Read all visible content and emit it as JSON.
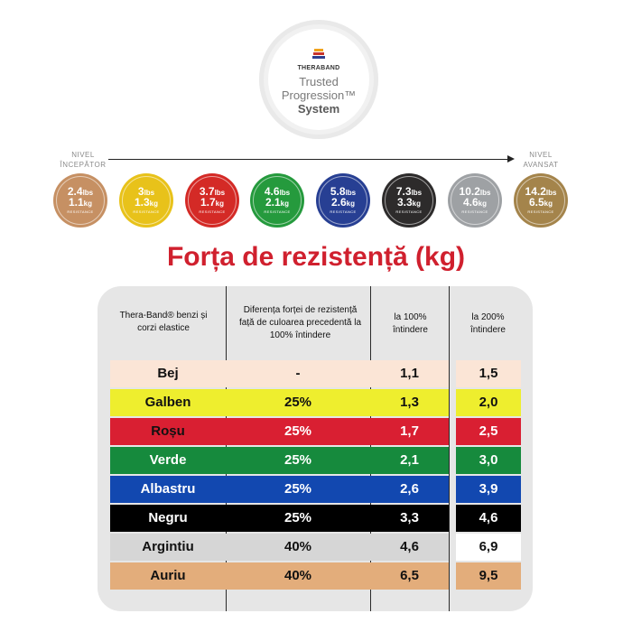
{
  "logo": {
    "brand": "THERABAND",
    "line1": "Trusted",
    "line2": "Progression™",
    "line3": "System"
  },
  "progression": {
    "start_label_1": "NIVEL",
    "start_label_2": "ÎNCEPĂTOR",
    "end_label_1": "NIVEL",
    "end_label_2": "AVANSAT"
  },
  "levels": [
    {
      "lbs": "2.4",
      "kg": "1.1",
      "color": "#c69063"
    },
    {
      "lbs": "3",
      "kg": "1.3",
      "color": "#e8c21a"
    },
    {
      "lbs": "3.7",
      "kg": "1.7",
      "color": "#d42a26"
    },
    {
      "lbs": "4.6",
      "kg": "2.1",
      "color": "#259a3d"
    },
    {
      "lbs": "5.8",
      "kg": "2.6",
      "color": "#273f93"
    },
    {
      "lbs": "7.3",
      "kg": "3.3",
      "color": "#2d2b2b"
    },
    {
      "lbs": "10.2",
      "kg": "4.6",
      "color": "#9ea1a4"
    },
    {
      "lbs": "14.2",
      "kg": "6.5",
      "color": "#a4844b"
    }
  ],
  "units": {
    "lbs": "lbs",
    "kg": "kg",
    "resistance": "RESISTANCE"
  },
  "title": "Forța de rezistență (kg)",
  "table": {
    "headers": {
      "col1": "Thera-Band® benzi și corzi elastice",
      "col2": "Diferența forței de rezistență față de culoarea precedentă la 100% întindere",
      "col3": "la 100% întindere",
      "col4": "la 200% întindere"
    },
    "rows": [
      {
        "name": "Bej",
        "diff": "-",
        "p100": "1,1",
        "p200": "1,5",
        "bg": "#fbe5d6",
        "fg": "#111111",
        "bg4": "#fbe5d6"
      },
      {
        "name": "Galben",
        "diff": "25%",
        "p100": "1,3",
        "p200": "2,0",
        "bg": "#eeee2e",
        "fg": "#111111",
        "bg4": "#eeee2e"
      },
      {
        "name": "Roșu",
        "diff": "25%",
        "p100": "1,7",
        "p200": "2,5",
        "bg": "#d91f32",
        "fg": "#ffffff",
        "fg1": "#111111",
        "bg4": "#d91f32"
      },
      {
        "name": "Verde",
        "diff": "25%",
        "p100": "2,1",
        "p200": "3,0",
        "bg": "#168a3d",
        "fg": "#ffffff",
        "bg4": "#168a3d"
      },
      {
        "name": "Albastru",
        "diff": "25%",
        "p100": "2,6",
        "p200": "3,9",
        "bg": "#1248b0",
        "fg": "#ffffff",
        "bg4": "#1248b0"
      },
      {
        "name": "Negru",
        "diff": "25%",
        "p100": "3,3",
        "p200": "4,6",
        "bg": "#000000",
        "fg": "#ffffff",
        "bg4": "#000000"
      },
      {
        "name": "Argintiu",
        "diff": "40%",
        "p100": "4,6",
        "p200": "6,9",
        "bg": "#d6d6d6",
        "fg": "#111111",
        "bg4": "#ffffff"
      },
      {
        "name": "Auriu",
        "diff": "40%",
        "p100": "6,5",
        "p200": "9,5",
        "bg": "#e3ad7b",
        "fg": "#111111",
        "bg4": "#e3ad7b"
      }
    ]
  }
}
